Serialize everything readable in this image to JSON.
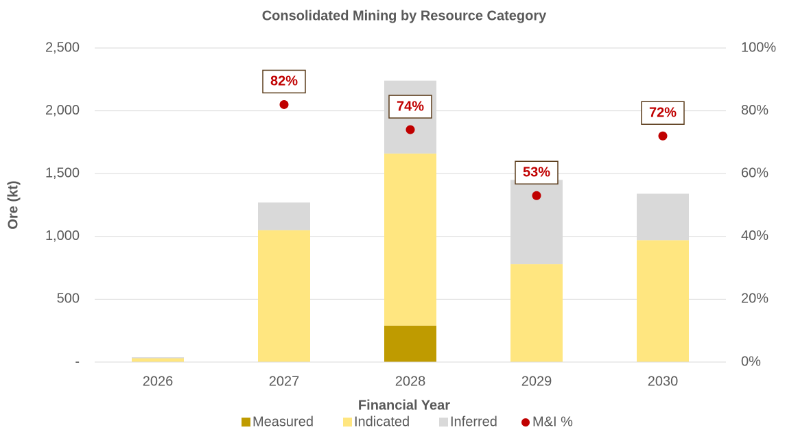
{
  "chart_data": {
    "type": "bar",
    "stacked": true,
    "title": "Consolidated Mining by Resource Category",
    "xlabel": "Financial Year",
    "ylabel": "Ore (kt)",
    "categories": [
      "2026",
      "2027",
      "2028",
      "2029",
      "2030"
    ],
    "series": [
      {
        "name": "Measured",
        "color": "#bf9b00",
        "values": [
          0,
          0,
          290,
          0,
          0
        ]
      },
      {
        "name": "Indicated",
        "color": "#ffe680",
        "values": [
          30,
          1050,
          1370,
          780,
          970
        ]
      },
      {
        "name": "Inferred",
        "color": "#d9d9d9",
        "values": [
          8,
          220,
          580,
          670,
          370
        ]
      },
      {
        "name": "M&I %",
        "color": "#c00000",
        "type": "scatter",
        "axis": "y2",
        "values": [
          null,
          82,
          74,
          53,
          72
        ],
        "value_labels": [
          null,
          "82%",
          "74%",
          "53%",
          "72%"
        ]
      }
    ],
    "ylim": [
      0,
      2500
    ],
    "yticks": [
      {
        "value": 0,
        "label": "-"
      },
      500,
      {
        "value": 1000,
        "label": "1,000"
      },
      {
        "value": 1500,
        "label": "1,500"
      },
      {
        "value": 2000,
        "label": "2,000"
      },
      {
        "value": 2500,
        "label": "2,500"
      }
    ],
    "y2lim": [
      0,
      100
    ],
    "y2ticks": [
      {
        "value": 0,
        "label": "0%"
      },
      {
        "value": 20,
        "label": "20%"
      },
      {
        "value": 40,
        "label": "40%"
      },
      {
        "value": 60,
        "label": "60%"
      },
      {
        "value": 80,
        "label": "80%"
      },
      {
        "value": 100,
        "label": "100%"
      }
    ],
    "grid": true,
    "legend": "bottom"
  }
}
